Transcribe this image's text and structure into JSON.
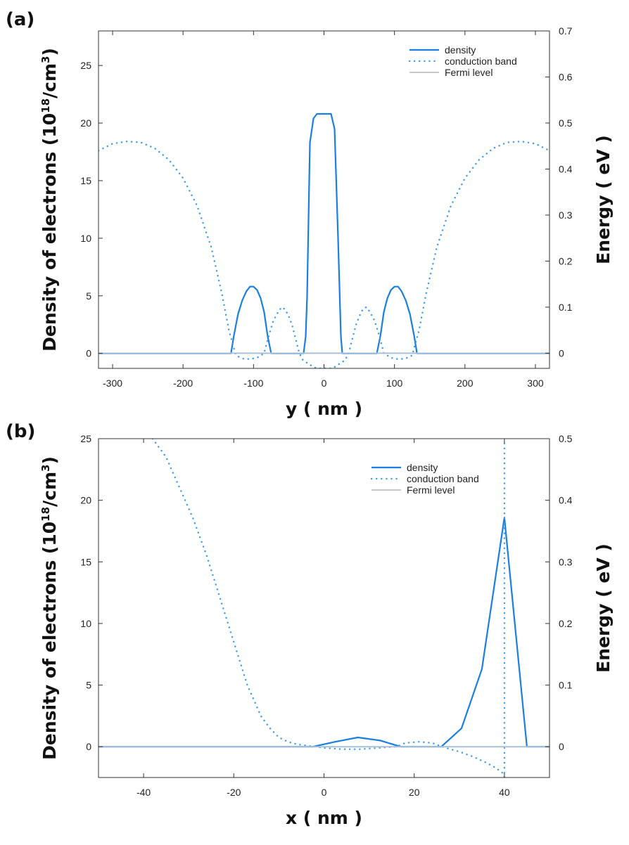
{
  "colors": {
    "density": "#1a7fe0",
    "conduction_band": "#3a9af0",
    "fermi": "#c8c8c8",
    "frame": "#333333"
  },
  "chart_data": [
    {
      "panel": "(a)",
      "type": "line",
      "xlabel": "y ( nm )",
      "ylabel": "Density of electrons",
      "ylabel_unit": "(10",
      "ylabel_exp": "18",
      "ylabel_tail": "/cm",
      "ylabel_cube": "3",
      "ylabel_close": ")",
      "y2label": "Energy ( eV )",
      "xlim": [
        -320,
        320
      ],
      "ylim": [
        -1.3,
        28
      ],
      "y2lim": [
        -0.033,
        0.7
      ],
      "xticks": [
        -300,
        -200,
        -100,
        0,
        100,
        200,
        300
      ],
      "yticks": [
        0,
        5,
        10,
        15,
        20,
        25
      ],
      "y2ticks": [
        0,
        0.1,
        0.2,
        0.3,
        0.4,
        0.5,
        0.6,
        0.7
      ],
      "legend": [
        "density",
        "conduction band",
        "Fermi level"
      ],
      "legend_position": "top-right",
      "series": [
        {
          "name": "density",
          "axis": "left",
          "style": "solid",
          "x": [
            -320,
            -132,
            -128,
            -122,
            -116,
            -110,
            -105,
            -100,
            -95,
            -90,
            -85,
            -80,
            -75,
            -29,
            -26,
            -24,
            -20,
            -15,
            -10,
            -5,
            0,
            5,
            10,
            15,
            20,
            24,
            26,
            29,
            75,
            80,
            85,
            90,
            95,
            100,
            105,
            110,
            116,
            122,
            128,
            132,
            320
          ],
          "y": [
            0,
            0,
            1.5,
            3.4,
            4.6,
            5.4,
            5.8,
            5.8,
            5.5,
            4.8,
            3.6,
            1.5,
            0,
            0,
            1.5,
            5,
            18.3,
            20.4,
            20.8,
            20.8,
            20.8,
            20.8,
            20.8,
            19.5,
            10,
            1.5,
            0,
            0,
            0,
            1.5,
            3.6,
            4.8,
            5.5,
            5.8,
            5.8,
            5.4,
            4.6,
            3.4,
            1.5,
            0,
            0
          ]
        },
        {
          "name": "conduction band",
          "axis": "right",
          "style": "dotted",
          "x": [
            -320,
            -300,
            -280,
            -260,
            -240,
            -220,
            -200,
            -180,
            -160,
            -145,
            -135,
            -125,
            -115,
            -105,
            -95,
            -85,
            -78,
            -72,
            -65,
            -60,
            -55,
            -50,
            -45,
            -40,
            -35,
            -30,
            -25,
            -20,
            -15,
            -10,
            -5,
            0,
            5,
            10,
            15,
            20,
            25,
            30,
            35,
            40,
            45,
            50,
            55,
            60,
            65,
            72,
            78,
            85,
            95,
            105,
            115,
            125,
            135,
            145,
            160,
            180,
            200,
            220,
            240,
            260,
            280,
            300,
            320
          ],
          "y": [
            0.44,
            0.455,
            0.46,
            0.458,
            0.445,
            0.42,
            0.38,
            0.32,
            0.23,
            0.13,
            0.05,
            -0.005,
            -0.012,
            -0.013,
            -0.01,
            0,
            0.04,
            0.07,
            0.09,
            0.1,
            0.095,
            0.08,
            0.06,
            0.03,
            0,
            -0.015,
            -0.02,
            -0.025,
            -0.03,
            -0.033,
            -0.033,
            -0.033,
            -0.033,
            -0.033,
            -0.03,
            -0.025,
            -0.02,
            -0.015,
            0,
            0.03,
            0.06,
            0.08,
            0.095,
            0.1,
            0.09,
            0.07,
            0.04,
            0,
            -0.01,
            -0.013,
            -0.012,
            -0.005,
            0.05,
            0.13,
            0.23,
            0.32,
            0.38,
            0.42,
            0.445,
            0.458,
            0.46,
            0.455,
            0.44
          ]
        },
        {
          "name": "Fermi level",
          "axis": "right",
          "style": "solid",
          "x": [
            -320,
            320
          ],
          "y": [
            0,
            0
          ]
        }
      ]
    },
    {
      "panel": "(b)",
      "type": "line",
      "xlabel": "x ( nm )",
      "ylabel": "Density of electrons",
      "ylabel_unit": "(10",
      "ylabel_exp": "18",
      "ylabel_tail": "/cm",
      "ylabel_cube": "3",
      "ylabel_close": ")",
      "y2label": "Energy ( eV )",
      "xlim": [
        -50,
        50
      ],
      "ylim": [
        -2.5,
        25
      ],
      "y2lim": [
        -0.05,
        0.5
      ],
      "xticks": [
        -40,
        -20,
        0,
        20,
        40
      ],
      "yticks": [
        0,
        5,
        10,
        15,
        20,
        25
      ],
      "y2ticks": [
        0,
        0.1,
        0.2,
        0.3,
        0.4,
        0.5
      ],
      "legend": [
        "density",
        "conduction band",
        "Fermi level"
      ],
      "legend_position": "top-right",
      "series": [
        {
          "name": "density",
          "axis": "left",
          "style": "solid",
          "x": [
            -50,
            -2.5,
            2.5,
            7.5,
            12.5,
            17,
            26,
            30.5,
            35,
            40,
            45,
            50
          ],
          "y": [
            0,
            0,
            0.4,
            0.75,
            0.5,
            0,
            0,
            1.5,
            6.3,
            18.6,
            0,
            0
          ]
        },
        {
          "name": "conduction band",
          "axis": "right",
          "style": "dotted",
          "x": [
            -38,
            -35,
            -32,
            -29,
            -26,
            -23,
            -20,
            -17,
            -14,
            -12,
            -10,
            -8,
            -6,
            -4,
            -2,
            0,
            4,
            8,
            12,
            16,
            18,
            21,
            24,
            27,
            30,
            33,
            36,
            38,
            39.5,
            40,
            40,
            40
          ],
          "y": [
            0.5,
            0.47,
            0.42,
            0.37,
            0.31,
            0.24,
            0.17,
            0.1,
            0.05,
            0.03,
            0.015,
            0.008,
            0.004,
            0.002,
            0,
            -0.002,
            -0.004,
            -0.004,
            -0.002,
            0,
            0.006,
            0.008,
            0.006,
            -0.002,
            -0.008,
            -0.016,
            -0.026,
            -0.034,
            -0.042,
            -0.05,
            0.2,
            0.5
          ]
        },
        {
          "name": "Fermi level",
          "axis": "right",
          "style": "solid",
          "x": [
            -50,
            50
          ],
          "y": [
            0,
            0
          ]
        }
      ]
    }
  ]
}
